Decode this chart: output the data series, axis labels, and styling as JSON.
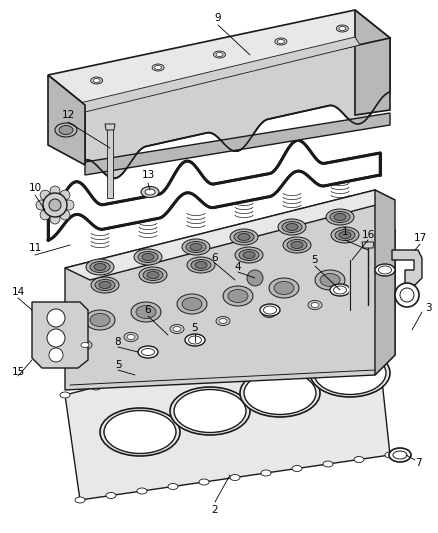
{
  "bg_color": "#ffffff",
  "lc": "#1a1a1a",
  "gray1": "#e8e8e8",
  "gray2": "#d0d0d0",
  "gray3": "#b8b8b8",
  "gray4": "#989898",
  "gray5": "#787878",
  "white": "#ffffff",
  "figsize": [
    4.38,
    5.33
  ],
  "dpi": 100
}
